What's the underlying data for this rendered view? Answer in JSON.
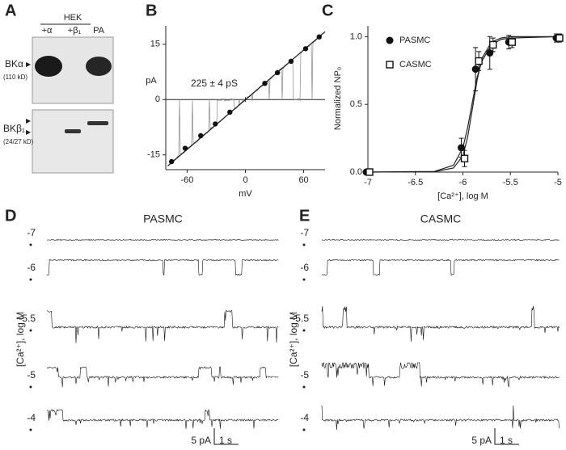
{
  "panel_labels": [
    "A",
    "B",
    "C",
    "D",
    "E"
  ],
  "blot": {
    "group": "HEK",
    "lanes": [
      "+α",
      "+β₁",
      "PA"
    ],
    "bands": [
      {
        "name": "BKα",
        "size": "(110 kD)"
      },
      {
        "name": "BKβ₁",
        "size": "(24/27 kD)"
      }
    ]
  },
  "chart_data": [
    {
      "type": "scatter",
      "annotation": "225 ± 4 pS",
      "x_label": "mV",
      "y_label": "pA",
      "color": "#111",
      "x": [
        -76,
        -62,
        -46,
        -31,
        -16,
        20,
        33,
        47,
        62,
        76
      ],
      "values": [
        -16.8,
        -13.2,
        -9.8,
        -6.6,
        -3.4,
        4.4,
        7.3,
        10.4,
        13.8,
        17.0
      ],
      "fit": {
        "x": [
          -80,
          82
        ],
        "values": [
          -18,
          18.4
        ]
      },
      "xlim": [
        -82,
        82
      ],
      "ylim": [
        -19,
        20
      ],
      "xticks": [
        -60,
        0,
        60
      ],
      "yticks": [
        -15,
        0,
        15
      ]
    },
    {
      "type": "dose",
      "x_label": "[Ca²⁺], log M",
      "y_label": "Normalized NPₒ",
      "series": [
        {
          "name": "PASMC",
          "color": "#111",
          "marker": "filled-circle",
          "x": [
            -7,
            -6,
            -5.85,
            -5.7,
            -5.5,
            -5
          ],
          "values": [
            0,
            0.18,
            0.76,
            0.88,
            0.96,
            0.99
          ],
          "errors": [
            0,
            0.07,
            0.16,
            0.12,
            0.05,
            0.03
          ]
        },
        {
          "name": "CASMC",
          "color": "#111",
          "marker": "open-square",
          "x": [
            -7,
            -6,
            -5.85,
            -5.7,
            -5.5,
            -5
          ],
          "values": [
            0,
            0.1,
            0.82,
            0.94,
            0.96,
            0.99
          ],
          "errors": [
            0,
            0.06,
            0.07,
            0.05,
            0.04,
            0.03
          ]
        }
      ],
      "fit_curves": [
        {
          "x": [
            -7,
            -6.3,
            -6.1,
            -6.0,
            -5.95,
            -5.9,
            -5.85,
            -5.8,
            -5.7,
            -5.6,
            -5.5,
            -5.0
          ],
          "values": [
            0,
            0.005,
            0.05,
            0.18,
            0.33,
            0.52,
            0.7,
            0.82,
            0.94,
            0.98,
            0.99,
            1.0
          ]
        },
        {
          "x": [
            -7,
            -6.3,
            -6.1,
            -6.0,
            -5.95,
            -5.9,
            -5.85,
            -5.8,
            -5.7,
            -5.6,
            -5.5,
            -5.0
          ],
          "values": [
            0,
            0.003,
            0.03,
            0.12,
            0.26,
            0.47,
            0.68,
            0.84,
            0.96,
            0.99,
            1.0,
            1.0
          ]
        }
      ],
      "xlim": [
        -7,
        -5
      ],
      "ylim": [
        0,
        1.08
      ],
      "xticks": [
        -7,
        -6.5,
        -6,
        -5.5,
        -5
      ],
      "yticks": [
        {
          "value": 0,
          "label": "0.0"
        },
        0.5,
        {
          "value": 1,
          "label": "1.0"
        }
      ]
    }
  ],
  "traces": [
    {
      "title": "PASMC",
      "levels": [
        "-7",
        "-6",
        "-5.5",
        "-5",
        "-4"
      ],
      "y_label": "[Ca²⁺], log M",
      "scale": [
        "5 pA",
        "1 s"
      ]
    },
    {
      "title": "CASMC",
      "levels": [
        "-7",
        "-6",
        "-5.5",
        "-5",
        "-4"
      ],
      "y_label": "[Ca²⁺], log M",
      "scale": [
        "5 pA",
        "1 s"
      ]
    }
  ]
}
